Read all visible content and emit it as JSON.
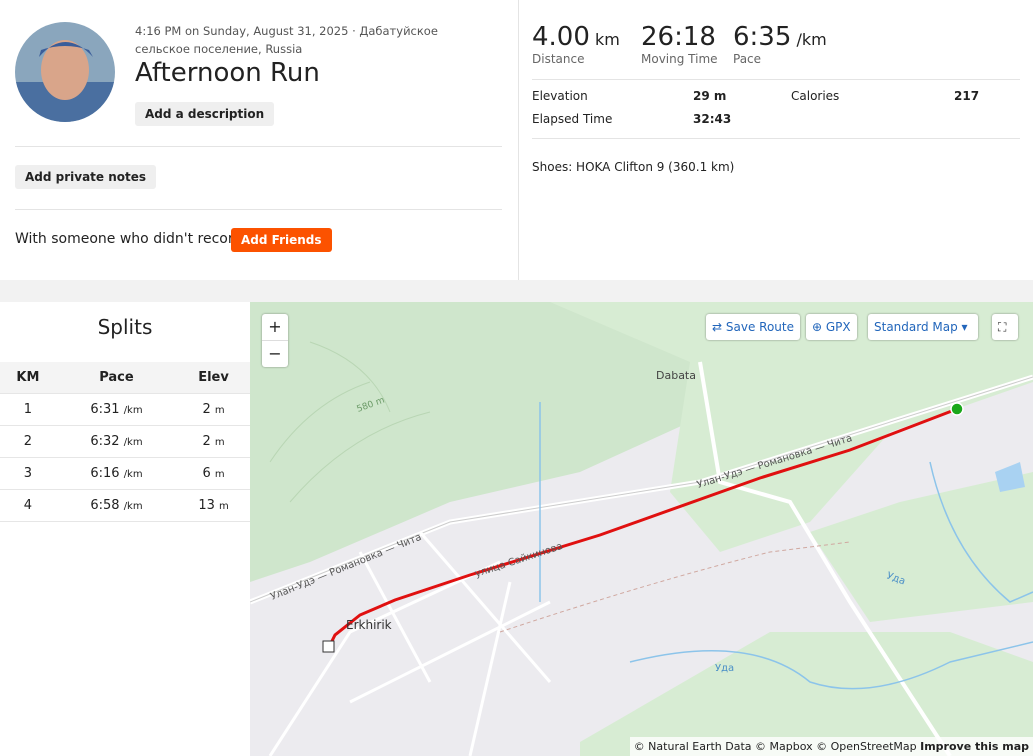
{
  "header": {
    "datetime": "4:16 PM on Sunday, August 31, 2025 · Дабатуйское сельское поселение, Russia",
    "title": "Afternoon Run",
    "add_description": "Add a description",
    "add_private_notes": "Add private notes",
    "with_someone": "With someone who didn't record?",
    "add_friends": "Add Friends"
  },
  "stats": {
    "primary": [
      {
        "value": "4.00",
        "unit": "km",
        "label": "Distance"
      },
      {
        "value": "26:18",
        "label": "Moving Time"
      },
      {
        "value": "6:35",
        "unit": "/km",
        "label": "Pace"
      }
    ],
    "secondary": [
      {
        "label": "Elevation",
        "value": "29 m"
      },
      {
        "label": "Calories",
        "value": "217"
      },
      {
        "label": "Elapsed Time",
        "value": "32:43"
      }
    ],
    "shoes": "Shoes: HOKA Clifton 9 (360.1 km)"
  },
  "splits": {
    "title": "Splits",
    "columns": [
      "KM",
      "Pace",
      "Elev"
    ],
    "rows": [
      {
        "km": "1",
        "pace": "6:31",
        "pace_unit": "/km",
        "elev": "2",
        "elev_unit": "m"
      },
      {
        "km": "2",
        "pace": "6:32",
        "pace_unit": "/km",
        "elev": "2",
        "elev_unit": "m"
      },
      {
        "km": "3",
        "pace": "6:16",
        "pace_unit": "/km",
        "elev": "6",
        "elev_unit": "m"
      },
      {
        "km": "4",
        "pace": "6:58",
        "pace_unit": "/km",
        "elev": "13",
        "elev_unit": "m"
      }
    ]
  },
  "map": {
    "zoom_in": "+",
    "zoom_out": "−",
    "save_route": "Save Route",
    "gpx": "GPX",
    "map_style": "Standard Map",
    "labels": {
      "dabata": "Dabata",
      "erkhirik": "Erkhirik",
      "highway": "Улан-Удэ — Романовка — Чита",
      "highway2": "Улан-Удэ — Романовка — Чита",
      "street": "улица Сайкинова",
      "river": "Уда",
      "river2": "Уда",
      "contour": "580 m"
    },
    "attribution": "© Natural Earth Data © Mapbox © OpenStreetMap",
    "improve": "Improve this map"
  }
}
